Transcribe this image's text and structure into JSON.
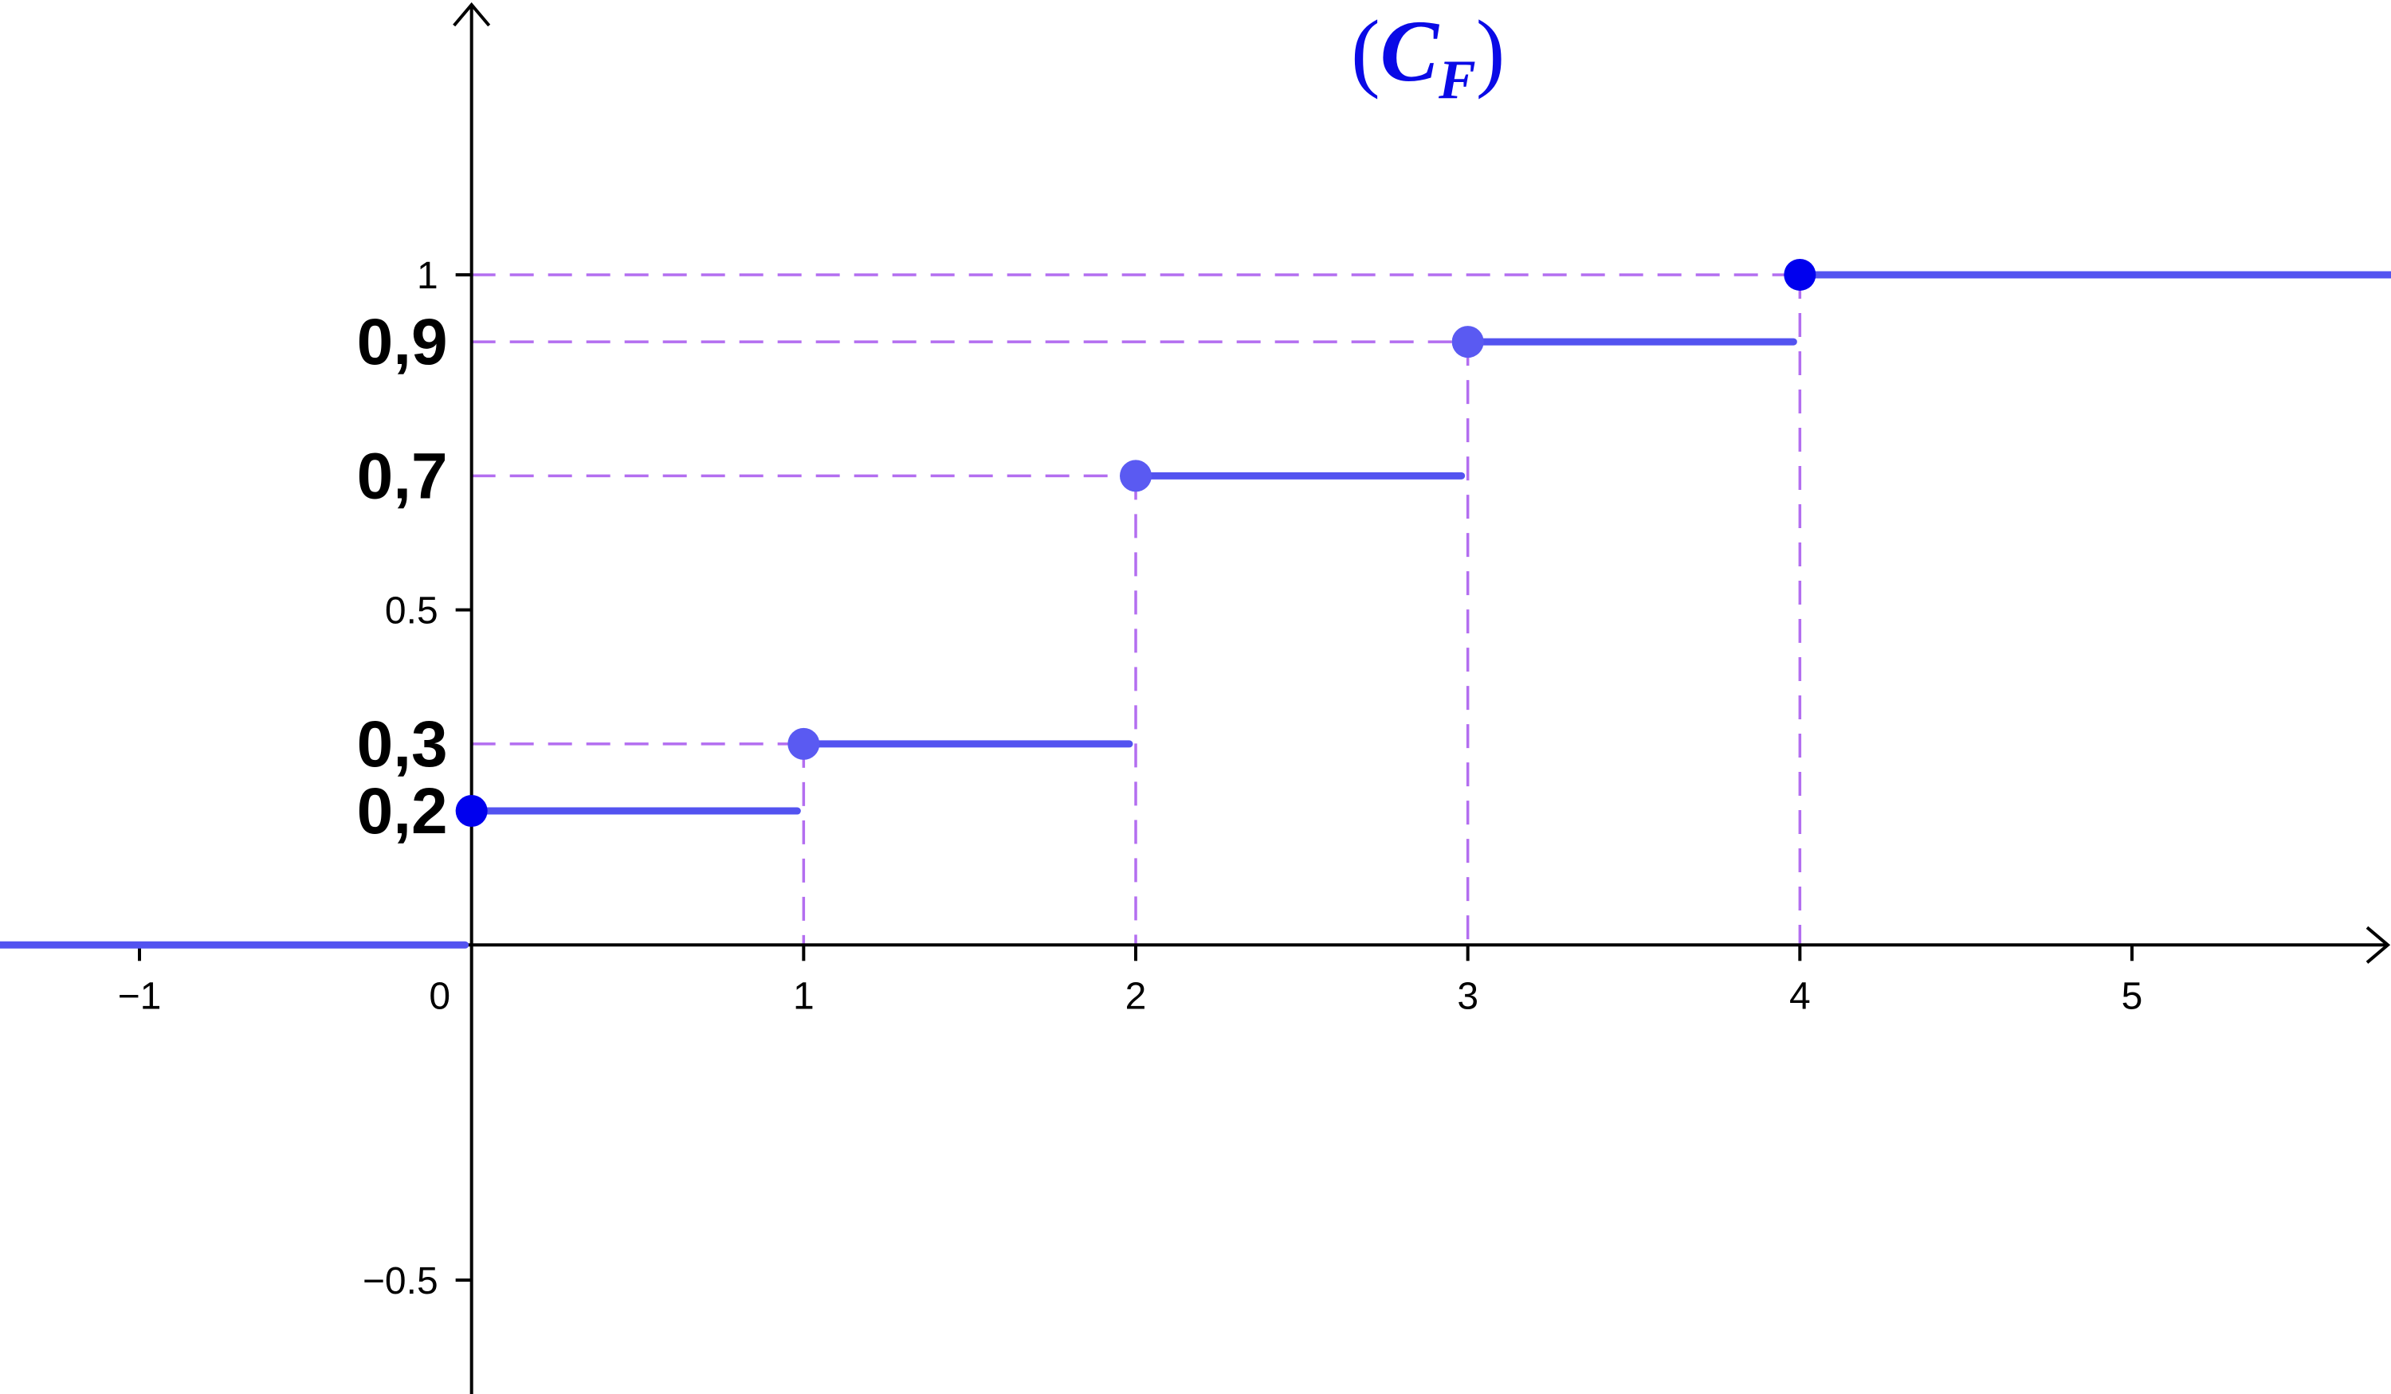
{
  "chart_data": {
    "type": "line",
    "title": "(C_F)",
    "title_parts": {
      "open": "(",
      "main": "C",
      "sub": "F",
      "close": ")"
    },
    "xlim": [
      -1.42,
      5.78
    ],
    "ylim": [
      -0.67,
      1.41
    ],
    "x_ticks": [
      {
        "value": -1,
        "label": "−1"
      },
      {
        "value": 0,
        "label": "0"
      },
      {
        "value": 1,
        "label": "1"
      },
      {
        "value": 2,
        "label": "2"
      },
      {
        "value": 3,
        "label": "3"
      },
      {
        "value": 4,
        "label": "4"
      },
      {
        "value": 5,
        "label": "5"
      }
    ],
    "y_ticks": [
      {
        "value": 1,
        "label": "1"
      },
      {
        "value": 0.5,
        "label": "0.5"
      },
      {
        "value": -0.5,
        "label": "−0.5"
      }
    ],
    "y_annotations": [
      {
        "value": 0.9,
        "label": "0,9"
      },
      {
        "value": 0.7,
        "label": "0,7"
      },
      {
        "value": 0.3,
        "label": "0,3"
      },
      {
        "value": 0.2,
        "label": "0,2"
      }
    ],
    "series": [
      {
        "steps": [
          {
            "x_start": -1.42,
            "x_end": 0,
            "y": 0
          },
          {
            "x_start": 0,
            "x_end": 1,
            "y": 0.2
          },
          {
            "x_start": 1,
            "x_end": 2,
            "y": 0.3
          },
          {
            "x_start": 2,
            "x_end": 3,
            "y": 0.7
          },
          {
            "x_start": 3,
            "x_end": 4,
            "y": 0.9
          },
          {
            "x_start": 4,
            "x_end": 5.78,
            "y": 1
          }
        ],
        "points": [
          {
            "x": 0,
            "y": 0.2
          },
          {
            "x": 1,
            "y": 0.3
          },
          {
            "x": 2,
            "y": 0.7
          },
          {
            "x": 3,
            "y": 0.9
          },
          {
            "x": 4,
            "y": 1
          }
        ]
      }
    ],
    "guide_lines": [
      {
        "x": 1,
        "y": 0.3
      },
      {
        "x": 2,
        "y": 0.7
      },
      {
        "x": 3,
        "y": 0.9
      },
      {
        "x": 4,
        "y": 1
      }
    ],
    "grid": false,
    "colors": {
      "curve": "#5353f0",
      "point_solid": "#0000ee",
      "point_light": "#5a5af2",
      "guides": "#b36ef0",
      "axes": "#000000",
      "title": "#0a0ae6"
    }
  }
}
